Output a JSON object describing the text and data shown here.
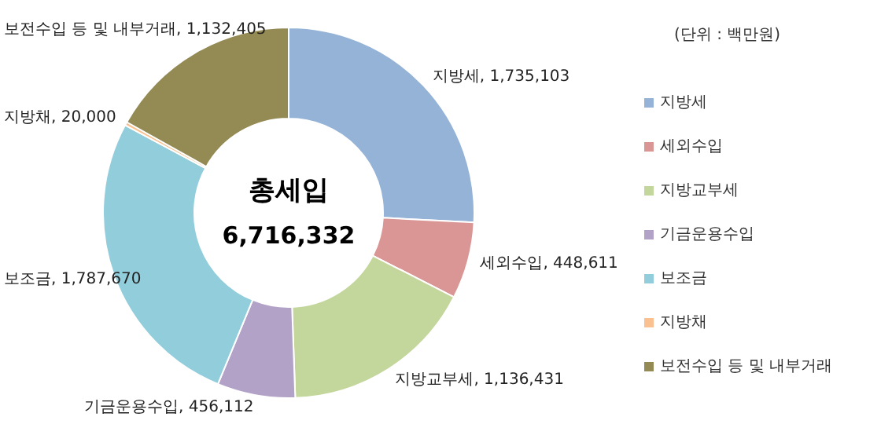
{
  "chart_data": {
    "type": "donut",
    "legend_title": "(단위 : 백만원)",
    "legend": "right",
    "categories": [
      "지방세",
      "세외수입",
      "지방교부세",
      "기금운용수입",
      "보조금",
      "지방채",
      "보전수입 등 및 내부거래"
    ],
    "values": [
      1735103,
      448611,
      1136431,
      456112,
      1787670,
      20000,
      1132405
    ],
    "value_labels": [
      "지방세, 1,735,103",
      "세외수입, 448,611",
      "지방교부세, 1,136,431",
      "기금운용수입, 456,112",
      "보조금, 1,787,670",
      "지방채, 20,000",
      "보전수입 등 및 내부거래, 1,132,405"
    ],
    "colors": [
      "#95b3d7",
      "#d99694",
      "#c3d69b",
      "#b3a2c7",
      "#92cddc",
      "#fac090",
      "#948a54"
    ],
    "annotations": [
      "총세입",
      "6,716,332"
    ]
  }
}
